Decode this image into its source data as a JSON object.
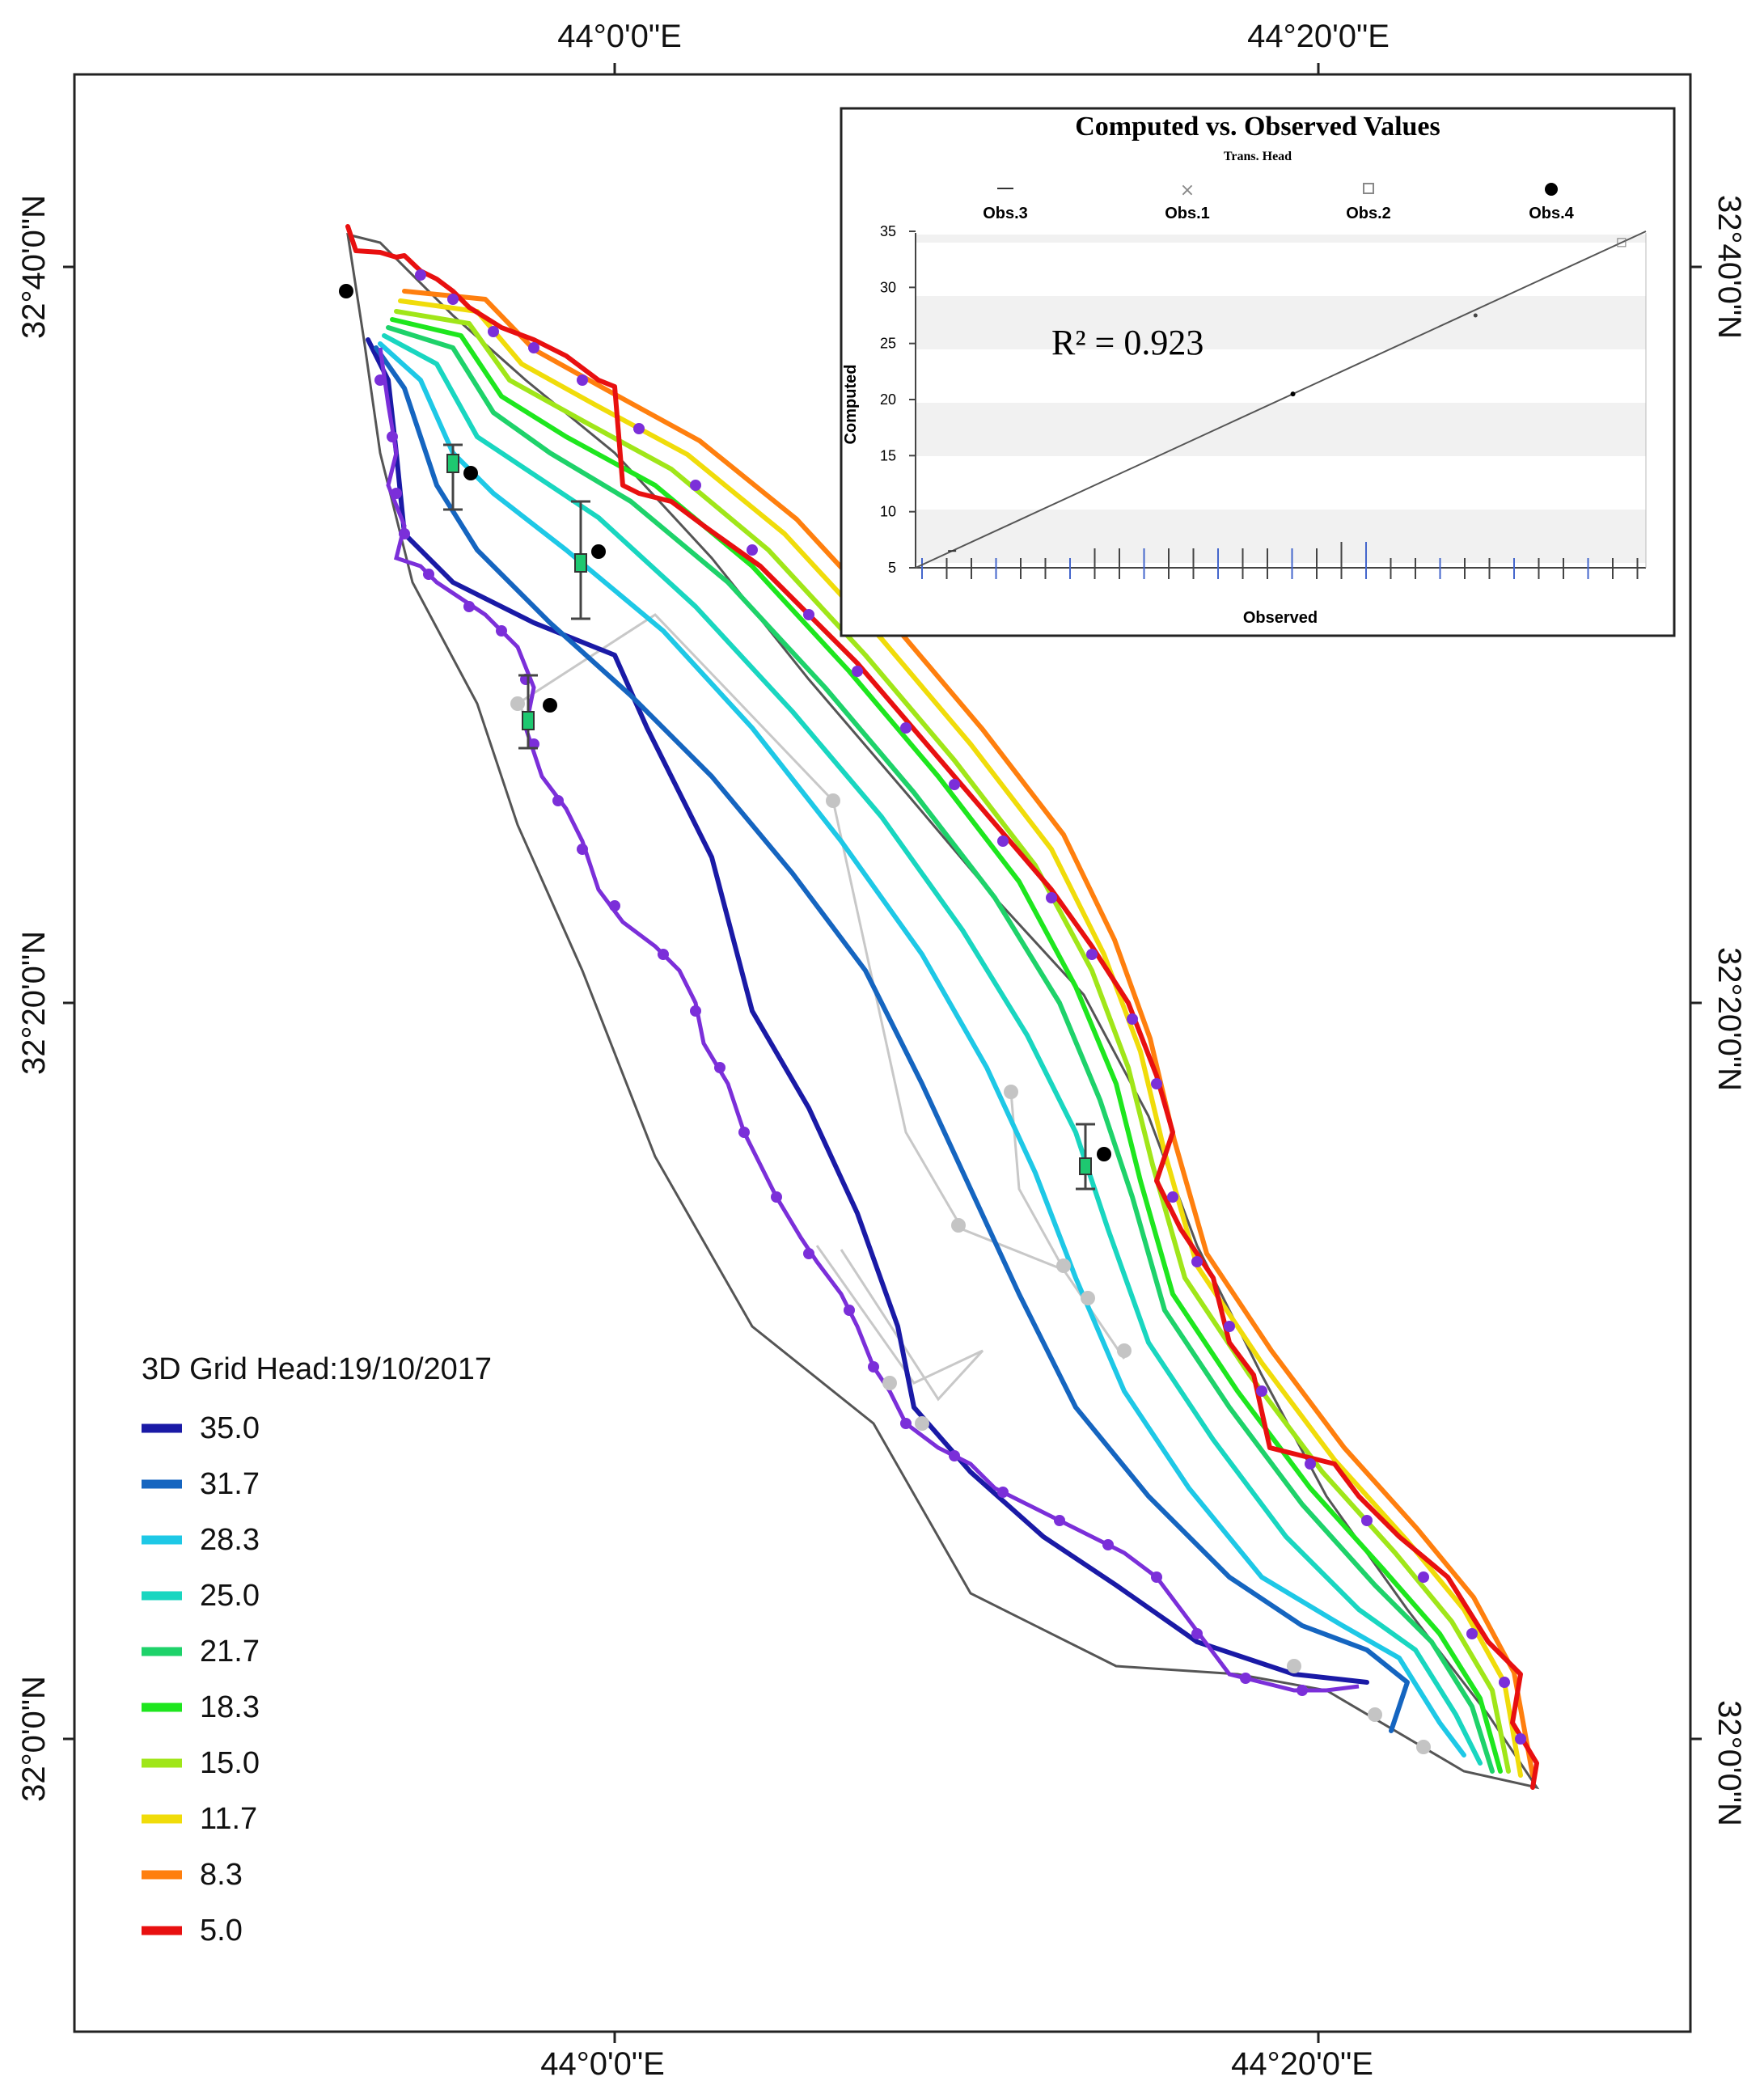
{
  "map": {
    "top_longitudes": [
      "44°0'0\"E",
      "44°20'0\"E"
    ],
    "bottom_longitudes": [
      "44°0'0\"E",
      "44°20'0\"E"
    ],
    "left_latitudes": [
      "32°40'0\"N",
      "32°20'0\"N",
      "32°0'0\"N"
    ],
    "right_latitudes": [
      "32°40'0\"N",
      "32°20'0\"N",
      "32°0'0\"N"
    ]
  },
  "legend": {
    "title": "3D Grid Head:19/10/2017",
    "items": [
      {
        "label": "35.0",
        "color": "#1a1aa6"
      },
      {
        "label": "31.7",
        "color": "#1565c0"
      },
      {
        "label": "28.3",
        "color": "#1ec8e6"
      },
      {
        "label": "25.0",
        "color": "#19d6c0"
      },
      {
        "label": "21.7",
        "color": "#1ed26a"
      },
      {
        "label": "18.3",
        "color": "#1ee61e"
      },
      {
        "label": "15.0",
        "color": "#a0e619"
      },
      {
        "label": "11.7",
        "color": "#f0dc0a"
      },
      {
        "label": "8.3",
        "color": "#ff7f0e"
      },
      {
        "label": "5.0",
        "color": "#e81010"
      }
    ]
  },
  "inset": {
    "title": "Computed vs. Observed Values",
    "subtitle": "Trans. Head",
    "legend": [
      "Obs.3",
      "Obs.1",
      "Obs.2",
      "Obs.4"
    ],
    "r2": "R² = 0.923",
    "xlabel": "Observed",
    "ylabel": "Computed"
  },
  "chart_data": {
    "type": "scatter",
    "title": "Computed vs. Observed Values",
    "subtitle": "Trans. Head",
    "xlabel": "Observed",
    "ylabel": "Computed",
    "yticks": [
      "35",
      "30",
      "25",
      "20",
      "15",
      "10",
      "5"
    ],
    "ylim": [
      5,
      35
    ],
    "xlim": [
      5,
      35
    ],
    "series": [
      {
        "name": "Obs.3",
        "x": [
          6.5
        ],
        "y": [
          6.5
        ]
      },
      {
        "name": "Obs.1",
        "x": [
          28
        ],
        "y": [
          27.5
        ]
      },
      {
        "name": "Obs.2",
        "x": [
          34
        ],
        "y": [
          34
        ]
      },
      {
        "name": "Obs.4",
        "x": [
          20.5
        ],
        "y": [
          20.5
        ]
      }
    ],
    "r2": 0.923
  }
}
